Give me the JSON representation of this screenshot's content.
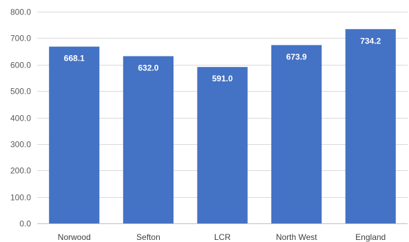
{
  "chart_data": {
    "type": "bar",
    "categories": [
      "Norwood",
      "Sefton",
      "LCR",
      "North West",
      "England"
    ],
    "values": [
      668.1,
      632.0,
      591.0,
      673.9,
      734.2
    ],
    "data_labels": [
      "668.1",
      "632.0",
      "591.0",
      "673.9",
      "734.2"
    ],
    "title": "",
    "xlabel": "",
    "ylabel": "",
    "ylim": [
      0,
      800
    ],
    "y_ticks": [
      0,
      100,
      200,
      300,
      400,
      500,
      600,
      700,
      800
    ],
    "y_tick_labels": [
      "0.0",
      "100.0",
      "200.0",
      "300.0",
      "400.0",
      "500.0",
      "600.0",
      "700.0",
      "800.0"
    ],
    "grid": true,
    "legend": "none",
    "bar_color": "#4472c4",
    "label_color": "#ffffff"
  }
}
